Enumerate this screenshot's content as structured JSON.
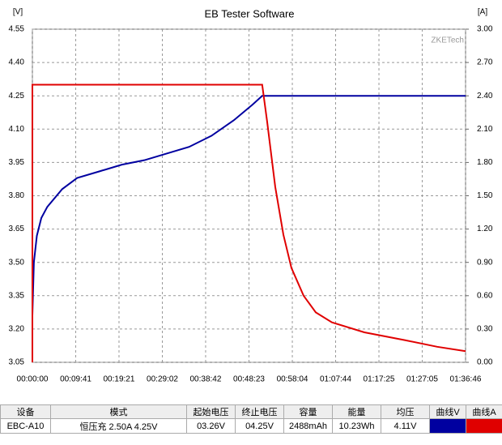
{
  "chart_data": {
    "type": "line",
    "title": "EB Tester Software",
    "ylabel": "[V]",
    "y2label": "[A]",
    "watermark": "ZKETech",
    "grid": true,
    "xlim": [
      0,
      5806
    ],
    "xticks": [
      {
        "value": 0,
        "label": "00:00:00"
      },
      {
        "value": 581,
        "label": "00:09:41"
      },
      {
        "value": 1161,
        "label": "00:19:21"
      },
      {
        "value": 1742,
        "label": "00:29:02"
      },
      {
        "value": 2322,
        "label": "00:38:42"
      },
      {
        "value": 2903,
        "label": "00:48:23"
      },
      {
        "value": 3484,
        "label": "00:58:04"
      },
      {
        "value": 4064,
        "label": "01:07:44"
      },
      {
        "value": 4645,
        "label": "01:17:25"
      },
      {
        "value": 5225,
        "label": "01:27:05"
      },
      {
        "value": 5806,
        "label": "01:36:46"
      }
    ],
    "ylim": [
      3.05,
      4.55
    ],
    "yticks": [
      3.05,
      {
        "value": 3.2,
        "label": "3.20"
      },
      3.35,
      {
        "value": 3.5,
        "label": "3.50"
      },
      3.65,
      {
        "value": 3.8,
        "label": "3.80"
      },
      3.95,
      {
        "value": 4.1,
        "label": "4.10"
      },
      4.25,
      {
        "value": 4.4,
        "label": "4.40"
      },
      4.55
    ],
    "y2lim": [
      0,
      3
    ],
    "y2ticks": [
      {
        "value": 0,
        "label": "0.00"
      },
      {
        "value": 0.3,
        "label": "0.30"
      },
      {
        "value": 0.6,
        "label": "0.60"
      },
      {
        "value": 0.9,
        "label": "0.90"
      },
      {
        "value": 1.2,
        "label": "1.20"
      },
      {
        "value": 1.5,
        "label": "1.50"
      },
      {
        "value": 1.8,
        "label": "1.80"
      },
      {
        "value": 2.1,
        "label": "2.10"
      },
      {
        "value": 2.4,
        "label": "2.40"
      },
      {
        "value": 2.7,
        "label": "2.70"
      },
      {
        "value": 3,
        "label": "3.00"
      }
    ],
    "series": [
      {
        "color": "#0000a0",
        "x": [
          0,
          20,
          60,
          120,
          200,
          400,
          600,
          900,
          1200,
          1500,
          1800,
          2100,
          2400,
          2700,
          2950,
          3080,
          5806
        ],
        "values": [
          3.26,
          3.5,
          3.62,
          3.7,
          3.75,
          3.83,
          3.88,
          3.91,
          3.94,
          3.96,
          3.99,
          4.02,
          4.07,
          4.14,
          4.21,
          4.25,
          4.25
        ]
      },
      {
        "color": "#e00000",
        "axis": "y2",
        "x": [
          0,
          0,
          3080,
          3146,
          3255,
          3364,
          3472,
          3635,
          3798,
          4015,
          4449,
          4991,
          5425,
          5806
        ],
        "values": [
          0,
          2.5,
          2.5,
          2.17,
          1.58,
          1.15,
          0.85,
          0.6,
          0.45,
          0.36,
          0.27,
          0.2,
          0.14,
          0.1
        ]
      }
    ]
  },
  "table": {
    "header": [
      "设备",
      "模式",
      "起始电压",
      "终止电压",
      "容量",
      "能量",
      "均压",
      "曲线V",
      "曲线A"
    ],
    "rows": [
      [
        "EBC-A10",
        "恒压充  2.50A  4.25V",
        "03.26V",
        "04.25V",
        "2488mAh",
        "10.23Wh",
        "4.11V"
      ]
    ]
  }
}
